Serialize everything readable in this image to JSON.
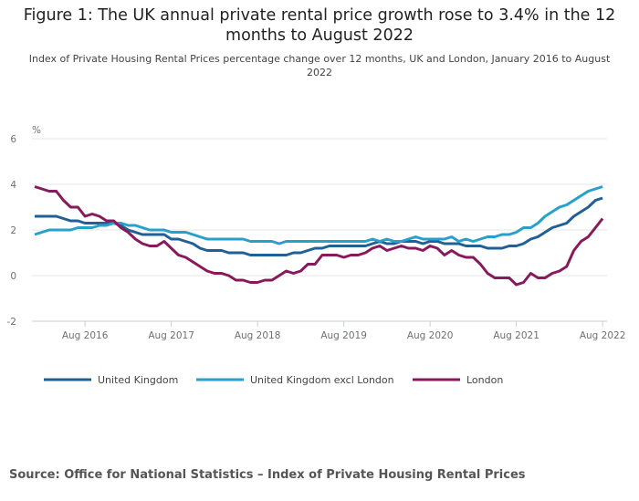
{
  "chart_data": {
    "type": "line",
    "title": "Figure 1: The UK annual private rental price growth rose to 3.4% in the 12 months to August 2022",
    "subtitle": "Index of Private Housing Rental Prices percentage change over 12 months, UK and London, January 2016 to August 2022",
    "ylabel": "%",
    "ylim": [
      -2,
      6
    ],
    "yticks": [
      "6",
      "4",
      "2",
      "0",
      "-2"
    ],
    "yticks_values": [
      6,
      4,
      2,
      0,
      -2
    ],
    "xticks": [
      "Aug 2016",
      "Aug 2017",
      "Aug 2018",
      "Aug 2019",
      "Aug 2020",
      "Aug 2021",
      "Aug 2022"
    ],
    "x_start": "Jan 2016",
    "x_end": "Aug 2022",
    "grid": true,
    "legend_position": "bottom",
    "series": [
      {
        "name": "United Kingdom",
        "color": "#206095",
        "values": [
          2.6,
          2.6,
          2.6,
          2.6,
          2.5,
          2.4,
          2.4,
          2.3,
          2.3,
          2.3,
          2.3,
          2.3,
          2.2,
          2.0,
          1.9,
          1.8,
          1.8,
          1.8,
          1.8,
          1.6,
          1.6,
          1.5,
          1.4,
          1.2,
          1.1,
          1.1,
          1.1,
          1.0,
          1.0,
          1.0,
          0.9,
          0.9,
          0.9,
          0.9,
          0.9,
          0.9,
          1.0,
          1.0,
          1.1,
          1.2,
          1.2,
          1.3,
          1.3,
          1.3,
          1.3,
          1.3,
          1.3,
          1.4,
          1.5,
          1.4,
          1.4,
          1.5,
          1.5,
          1.5,
          1.4,
          1.5,
          1.5,
          1.4,
          1.4,
          1.4,
          1.3,
          1.3,
          1.3,
          1.2,
          1.2,
          1.2,
          1.3,
          1.3,
          1.4,
          1.6,
          1.7,
          1.9,
          2.1,
          2.2,
          2.3,
          2.6,
          2.8,
          3.0,
          3.3,
          3.4
        ]
      },
      {
        "name": "United Kingdom excl London",
        "color": "#27a0cc",
        "values": [
          1.8,
          1.9,
          2.0,
          2.0,
          2.0,
          2.0,
          2.1,
          2.1,
          2.1,
          2.2,
          2.2,
          2.3,
          2.3,
          2.2,
          2.2,
          2.1,
          2.0,
          2.0,
          2.0,
          1.9,
          1.9,
          1.9,
          1.8,
          1.7,
          1.6,
          1.6,
          1.6,
          1.6,
          1.6,
          1.6,
          1.5,
          1.5,
          1.5,
          1.5,
          1.4,
          1.5,
          1.5,
          1.5,
          1.5,
          1.5,
          1.5,
          1.5,
          1.5,
          1.5,
          1.5,
          1.5,
          1.5,
          1.6,
          1.5,
          1.6,
          1.5,
          1.5,
          1.6,
          1.7,
          1.6,
          1.6,
          1.6,
          1.6,
          1.7,
          1.5,
          1.6,
          1.5,
          1.6,
          1.7,
          1.7,
          1.8,
          1.8,
          1.9,
          2.1,
          2.1,
          2.3,
          2.6,
          2.8,
          3.0,
          3.1,
          3.3,
          3.5,
          3.7,
          3.8,
          3.9
        ]
      },
      {
        "name": "London",
        "color": "#871a5b",
        "values": [
          3.9,
          3.8,
          3.7,
          3.7,
          3.3,
          3.0,
          3.0,
          2.6,
          2.7,
          2.6,
          2.4,
          2.4,
          2.1,
          1.9,
          1.6,
          1.4,
          1.3,
          1.3,
          1.5,
          1.2,
          0.9,
          0.8,
          0.6,
          0.4,
          0.2,
          0.1,
          0.1,
          0.0,
          -0.2,
          -0.2,
          -0.3,
          -0.3,
          -0.2,
          -0.2,
          0.0,
          0.2,
          0.1,
          0.2,
          0.5,
          0.5,
          0.9,
          0.9,
          0.9,
          0.8,
          0.9,
          0.9,
          1.0,
          1.2,
          1.3,
          1.1,
          1.2,
          1.3,
          1.2,
          1.2,
          1.1,
          1.3,
          1.2,
          0.9,
          1.1,
          0.9,
          0.8,
          0.8,
          0.5,
          0.1,
          -0.1,
          -0.1,
          -0.1,
          -0.4,
          -0.3,
          0.1,
          -0.1,
          -0.1,
          0.1,
          0.2,
          0.4,
          1.1,
          1.5,
          1.7,
          2.1,
          2.5
        ]
      }
    ]
  },
  "source": "Source: Office for National Statistics – Index of Private Housing Rental Prices"
}
